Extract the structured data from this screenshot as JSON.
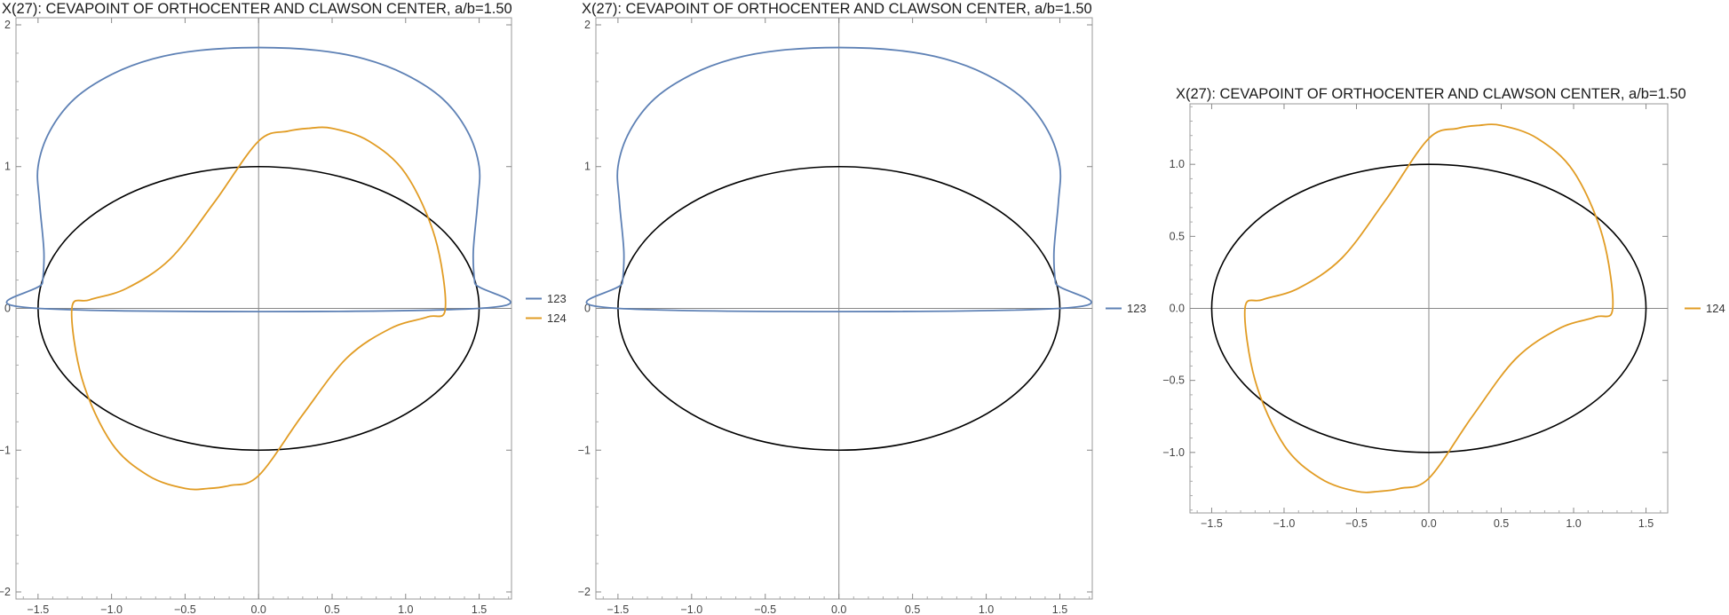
{
  "chart_data": [
    {
      "type": "line",
      "title": "X(27): CEVAPOINT OF ORTHOCENTER AND CLAWSON CENTER, a/b=1.50",
      "xlabel": "",
      "ylabel": "",
      "xlim": [
        -1.65,
        1.72
      ],
      "ylim": [
        -2.05,
        2.05
      ],
      "xticks": [
        -1.5,
        -1.0,
        -0.5,
        0.0,
        0.5,
        1.0,
        1.5
      ],
      "xtick_labels": [
        "−1.5",
        "−1.0",
        "−0.5",
        "0.0",
        "0.5",
        "1.0",
        "1.5"
      ],
      "yticks": [
        -2,
        -1,
        0,
        1,
        2
      ],
      "ytick_labels": [
        "−2",
        "−1",
        "0",
        "1",
        "2"
      ],
      "grid": false,
      "legend": "right",
      "reference_ellipse": {
        "a": 1.5,
        "b": 1.0,
        "color": "#000000"
      },
      "series": [
        {
          "name": "123",
          "color": "#5E81B5",
          "curve": "closed",
          "x": [
            1.5,
            1.47,
            1.46,
            1.49,
            1.5,
            1.42,
            1.25,
            1.0,
            0.72,
            0.4,
            0.0,
            -0.4,
            -0.72,
            -1.0,
            -1.25,
            -1.42,
            -1.5,
            -1.49,
            -1.46,
            -1.47,
            -1.5
          ],
          "y": [
            0.0,
            0.18,
            0.4,
            0.75,
            1.0,
            1.25,
            1.48,
            1.65,
            1.76,
            1.82,
            1.84,
            1.82,
            1.76,
            1.65,
            1.48,
            1.25,
            1.0,
            0.75,
            0.4,
            0.18,
            0.0
          ]
        },
        {
          "name": "124",
          "color": "#E19C24",
          "curve": "closed",
          "x": [
            1.27,
            1.2,
            1.0,
            0.75,
            0.5,
            0.34,
            0.2,
            0.0,
            -0.3,
            -0.6,
            -0.9,
            -1.15,
            -1.27,
            -1.2,
            -1.0,
            -0.75,
            -0.5,
            -0.34,
            -0.2,
            0.0,
            0.3,
            0.6,
            0.9,
            1.15,
            1.27
          ],
          "y": [
            0.0,
            0.5,
            0.95,
            1.18,
            1.27,
            1.27,
            1.25,
            1.18,
            0.75,
            0.35,
            0.14,
            0.06,
            0.0,
            -0.5,
            -0.95,
            -1.18,
            -1.27,
            -1.27,
            -1.25,
            -1.18,
            -0.75,
            -0.35,
            -0.14,
            -0.06,
            0.0
          ]
        }
      ]
    },
    {
      "type": "line",
      "title": "X(27): CEVAPOINT OF ORTHOCENTER AND CLAWSON CENTER, a/b=1.50",
      "xlabel": "",
      "ylabel": "",
      "xlim": [
        -1.65,
        1.72
      ],
      "ylim": [
        -2.05,
        2.05
      ],
      "xticks": [
        -1.5,
        -1.0,
        -0.5,
        0.0,
        0.5,
        1.0,
        1.5
      ],
      "xtick_labels": [
        "−1.5",
        "−1.0",
        "−0.5",
        "0.0",
        "0.5",
        "1.0",
        "1.5"
      ],
      "yticks": [
        -2,
        -1,
        0,
        1,
        2
      ],
      "ytick_labels": [
        "−2",
        "−1",
        "0",
        "1",
        "2"
      ],
      "grid": false,
      "legend": "right",
      "reference_ellipse": {
        "a": 1.5,
        "b": 1.0,
        "color": "#000000"
      },
      "series": [
        {
          "name": "123",
          "color": "#5E81B5",
          "curve": "closed",
          "x": [
            1.5,
            1.47,
            1.46,
            1.49,
            1.5,
            1.42,
            1.25,
            1.0,
            0.72,
            0.4,
            0.0,
            -0.4,
            -0.72,
            -1.0,
            -1.25,
            -1.42,
            -1.5,
            -1.49,
            -1.46,
            -1.47,
            -1.5
          ],
          "y": [
            0.0,
            0.18,
            0.4,
            0.75,
            1.0,
            1.25,
            1.48,
            1.65,
            1.76,
            1.82,
            1.84,
            1.82,
            1.76,
            1.65,
            1.48,
            1.25,
            1.0,
            0.75,
            0.4,
            0.18,
            0.0
          ]
        }
      ]
    },
    {
      "type": "line",
      "title": "X(27): CEVAPOINT OF ORTHOCENTER AND CLAWSON CENTER, a/b=1.50",
      "xlabel": "",
      "ylabel": "",
      "xlim": [
        -1.65,
        1.65
      ],
      "ylim": [
        -1.42,
        1.42
      ],
      "xticks": [
        -1.5,
        -1.0,
        -0.5,
        0.0,
        0.5,
        1.0,
        1.5
      ],
      "xtick_labels": [
        "−1.5",
        "−1.0",
        "−0.5",
        "0.0",
        "0.5",
        "1.0",
        "1.5"
      ],
      "yticks": [
        -1.0,
        -0.5,
        0.0,
        0.5,
        1.0
      ],
      "ytick_labels": [
        "−1.0",
        "−0.5",
        "0.0",
        "0.5",
        "1.0"
      ],
      "grid": false,
      "legend": "right",
      "reference_ellipse": {
        "a": 1.5,
        "b": 1.0,
        "color": "#000000"
      },
      "series": [
        {
          "name": "124",
          "color": "#E19C24",
          "curve": "closed",
          "x": [
            1.27,
            1.2,
            1.0,
            0.75,
            0.5,
            0.34,
            0.2,
            0.0,
            -0.3,
            -0.6,
            -0.9,
            -1.15,
            -1.27,
            -1.2,
            -1.0,
            -0.75,
            -0.5,
            -0.34,
            -0.2,
            0.0,
            0.3,
            0.6,
            0.9,
            1.15,
            1.27
          ],
          "y": [
            0.0,
            0.5,
            0.95,
            1.18,
            1.27,
            1.27,
            1.25,
            1.18,
            0.75,
            0.35,
            0.14,
            0.06,
            0.0,
            -0.5,
            -0.95,
            -1.18,
            -1.27,
            -1.27,
            -1.25,
            -1.18,
            -0.75,
            -0.35,
            -0.14,
            -0.06,
            0.0
          ]
        }
      ]
    }
  ]
}
